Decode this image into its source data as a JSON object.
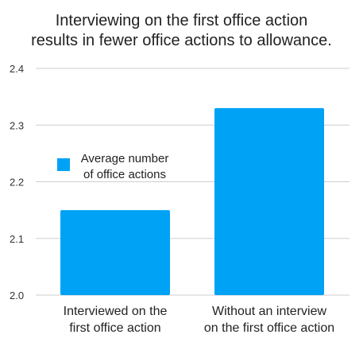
{
  "chart_data": {
    "type": "bar",
    "title_lines": [
      "Interviewing on the first office action",
      "results in fewer office actions to allowance."
    ],
    "categories": [
      [
        "Interviewed on the",
        "first office action"
      ],
      [
        "Without an interview",
        "on the first office action"
      ]
    ],
    "series": [
      {
        "name_lines": [
          "Average number",
          "of office actions"
        ],
        "values": [
          2.15,
          2.33
        ],
        "color": "#00a2f5"
      }
    ],
    "ylim": [
      2.0,
      2.4
    ],
    "yticks": [
      "2.0",
      "2.1",
      "2.2",
      "2.3",
      "2.4"
    ],
    "grid": true,
    "legend_position": "inside-left",
    "gridline_color": "#cfcfcf"
  }
}
